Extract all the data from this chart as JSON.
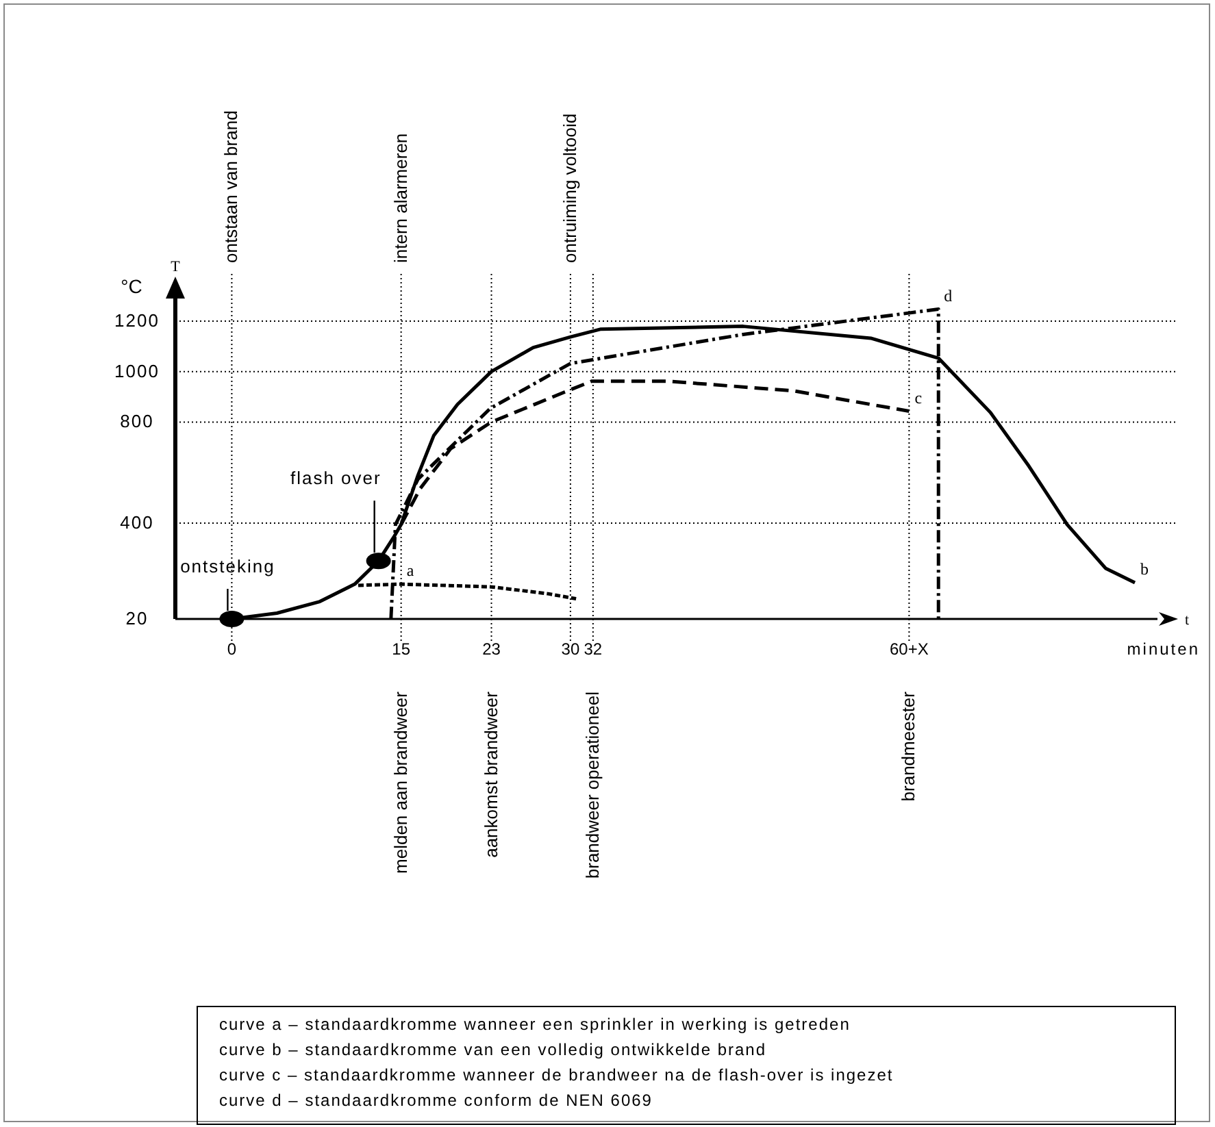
{
  "chart_data": {
    "type": "line",
    "xlabel": "t",
    "ylabel": "T",
    "xlim": [
      -5,
      82
    ],
    "xticks": [
      0,
      15,
      23,
      30,
      32,
      {
        "value": 60,
        "label": "60+X"
      }
    ],
    "ylim": [
      20,
      1300
    ],
    "yticks": [
      20,
      400,
      800,
      1000,
      1200
    ],
    "grid": "y",
    "series": [
      {
        "name": "a",
        "color": "#000000",
        "line_style": "dotted",
        "x": [
          11.2,
          15,
          23,
          28,
          30.5
        ],
        "values": [
          153,
          158,
          147,
          120,
          100
        ]
      },
      {
        "name": "b",
        "color": "#000000",
        "line_style": "solid",
        "x": [
          0,
          4,
          7.8,
          10.9,
          13,
          14.4,
          15,
          16.5,
          17.9,
          20,
          23,
          26.7,
          30,
          32.7,
          45.3,
          56.6,
          62.6,
          67.2,
          70.6,
          74,
          77.4,
          80
        ],
        "values": [
          20,
          43,
          89,
          158,
          250,
          348,
          394,
          590,
          747,
          870,
          1000,
          1095,
          1137,
          1168,
          1179,
          1132,
          1053,
          838,
          626,
          394,
          221,
          164
        ]
      },
      {
        "name": "c",
        "color": "#000000",
        "line_style": "dashed",
        "x": [
          15,
          16.7,
          19.4,
          23,
          29.5,
          31.9,
          38.5,
          49.7,
          60
        ],
        "values": [
          394,
          537,
          695,
          800,
          919,
          962,
          962,
          924,
          843
        ]
      },
      {
        "name": "d",
        "color": "#000000",
        "line_style": "dashdot",
        "x": [
          14.1,
          14.5,
          16.5,
          18.9,
          22.9,
          30,
          45.3,
          62.6,
          62.6
        ],
        "values": [
          20,
          394,
          574,
          679,
          854,
          1032,
          1147,
          1247,
          20
        ]
      },
      {
        "type": "scatter",
        "color": "#000000",
        "marker": "circle",
        "x": [
          0,
          13
        ],
        "values": [
          20,
          250
        ]
      }
    ],
    "ref_lines": [
      {
        "axis": "x",
        "value": 0,
        "label": "ontstaan van brand",
        "line_style": "dotted"
      },
      {
        "axis": "x",
        "value": 15,
        "label": "intern alarmeren",
        "line_style": "dotted"
      },
      {
        "axis": "x",
        "value": 30,
        "label": "ontruiming voltooid",
        "line_style": "dotted"
      },
      {
        "axis": "x",
        "value": 23,
        "label": "aankomst brandweer",
        "line_style": "dotted"
      },
      {
        "axis": "x",
        "value": 32,
        "label": "brandweer operationeel",
        "line_style": "dotted"
      },
      {
        "axis": "x",
        "value": 60,
        "label": "brandmeester",
        "line_style": "dotted"
      }
    ],
    "annotations": [
      "°C",
      "minuten",
      {
        "text": "ontsteking",
        "x": 0,
        "y": 20
      },
      {
        "text": "flash over",
        "x": 13,
        "y": 250
      },
      "melden aan brandweer",
      "curve a – standaardkromme wanneer een sprinkler in werking is getreden",
      "curve b – standaardkromme van een volledig ontwikkelde brand",
      "curve c – standaardkromme wanneer de brandweer na de flash-over is ingezet",
      "curve d – standaardkromme conform de NEN 6069"
    ]
  }
}
